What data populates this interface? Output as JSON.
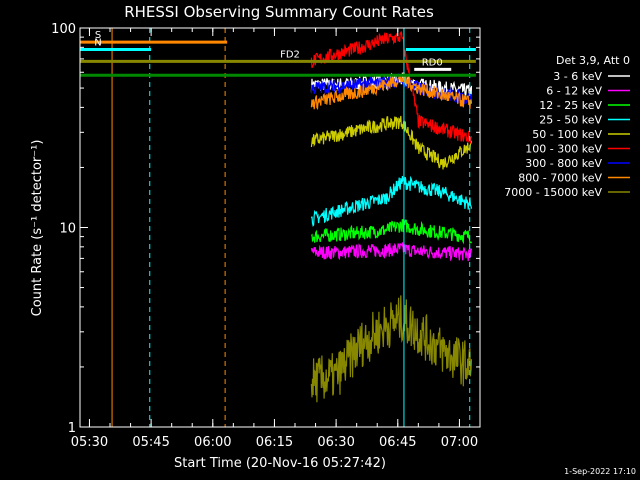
{
  "chart_data": {
    "type": "line",
    "title": "RHESSI Observing Summary Count Rates",
    "xlabel": "Start Time (20-Nov-16 05:27:42)",
    "ylabel": "Count Rate (s⁻¹ detector⁻¹)",
    "y_scale": "log",
    "ylim": [
      1,
      100
    ],
    "xlim": [
      "05:27:42",
      "07:05:00"
    ],
    "x_ticks": [
      "05:30",
      "05:45",
      "06:00",
      "06:15",
      "06:30",
      "06:45",
      "07:00"
    ],
    "y_ticks": [
      "1",
      "10",
      "100"
    ],
    "grid": false,
    "legend_position": "right",
    "legend_title": "Det 3,9, Att 0",
    "series": [
      {
        "name": "3 - 6 keV",
        "color": "#ffffff",
        "x": [
          "06:24",
          "06:30",
          "06:36",
          "06:42",
          "06:46",
          "06:50",
          "06:56",
          "07:03"
        ],
        "y": [
          52,
          52,
          53,
          54,
          55,
          52,
          50,
          48
        ]
      },
      {
        "name": "6 - 12 keV",
        "color": "#ff00ff",
        "x": [
          "06:24",
          "06:30",
          "06:36",
          "06:42",
          "06:46",
          "06:50",
          "06:56",
          "07:03"
        ],
        "y": [
          7.5,
          7.5,
          7.6,
          7.7,
          7.8,
          7.6,
          7.5,
          7.3
        ]
      },
      {
        "name": "12 - 25 keV",
        "color": "#00ff00",
        "x": [
          "06:24",
          "06:30",
          "06:36",
          "06:42",
          "06:46",
          "06:50",
          "06:56",
          "07:03"
        ],
        "y": [
          9,
          9.2,
          9.4,
          9.7,
          10.3,
          9.8,
          9.4,
          9
        ]
      },
      {
        "name": "25 - 50 keV",
        "color": "#00ffff",
        "x": [
          "06:24",
          "06:30",
          "06:36",
          "06:42",
          "06:46",
          "06:50",
          "06:56",
          "07:03"
        ],
        "y": [
          11,
          12,
          13,
          14,
          17,
          16,
          15,
          13
        ]
      },
      {
        "name": "50 - 100 keV",
        "color": "#cccc00",
        "x": [
          "06:24",
          "06:30",
          "06:36",
          "06:42",
          "06:46",
          "06:50",
          "06:56",
          "07:03"
        ],
        "y": [
          27,
          29,
          31,
          33,
          34,
          25,
          21,
          26
        ]
      },
      {
        "name": "100 - 300 keV",
        "color": "#ff0000",
        "x": [
          "06:24",
          "06:30",
          "06:36",
          "06:42",
          "06:46",
          "06:50",
          "06:56",
          "07:03"
        ],
        "y": [
          68,
          74,
          80,
          88,
          90,
          34,
          31,
          28
        ]
      },
      {
        "name": "300 - 800 keV",
        "color": "#0000ff",
        "x": [
          "06:24",
          "06:30",
          "06:36",
          "06:42",
          "06:46",
          "06:50",
          "06:56",
          "07:03"
        ],
        "y": [
          50,
          51,
          52,
          53,
          55,
          50,
          47,
          44
        ]
      },
      {
        "name": "800 - 7000 keV",
        "color": "#ff8800",
        "x": [
          "06:24",
          "06:30",
          "06:36",
          "06:42",
          "06:46",
          "06:50",
          "06:56",
          "07:03"
        ],
        "y": [
          42,
          45,
          48,
          52,
          56,
          50,
          46,
          42
        ]
      },
      {
        "name": "7000 - 15000 keV",
        "color": "#888800",
        "x": [
          "06:24",
          "06:30",
          "06:36",
          "06:42",
          "06:46",
          "06:50",
          "06:56",
          "07:03"
        ],
        "y": [
          1.7,
          1.8,
          2.6,
          3.2,
          3.5,
          3.0,
          2.4,
          2.0
        ]
      }
    ],
    "flag_bars": [
      {
        "label": "S",
        "color": "#ff8800",
        "x_start": "05:27:42",
        "x_end": "06:03:30",
        "y": 85
      },
      {
        "label": "N",
        "color": "#00ffff",
        "x_start": "05:27:42",
        "x_end": "05:45:00",
        "y": 78
      },
      {
        "label": "FD2",
        "color": "#888800",
        "x_start": "05:27:42",
        "x_end": "07:04:00",
        "y": 68
      },
      {
        "label": "",
        "color": "#008800",
        "x_start": "05:27:42",
        "x_end": "07:04:00",
        "y": 58
      },
      {
        "label": "",
        "color": "#00ffff",
        "x_start": "06:47:00",
        "x_end": "07:04:00",
        "y": 78
      },
      {
        "label": "RD0",
        "color": "#ffffff",
        "x_start": "06:49:00",
        "x_end": "06:58:00",
        "y": 62
      }
    ],
    "vertical_lines": [
      {
        "x": "05:35:30",
        "color": "#ff8800",
        "style": "solid"
      },
      {
        "x": "05:44:40",
        "color": "#00ffff",
        "style": "dashed"
      },
      {
        "x": "06:03:00",
        "color": "#ff8800",
        "style": "dashed"
      },
      {
        "x": "06:46:30",
        "color": "#00ffff",
        "style": "solid"
      },
      {
        "x": "07:02:30",
        "color": "#00ffff",
        "style": "dashed"
      }
    ],
    "footer_stamp": "1-Sep-2022 17:10"
  }
}
